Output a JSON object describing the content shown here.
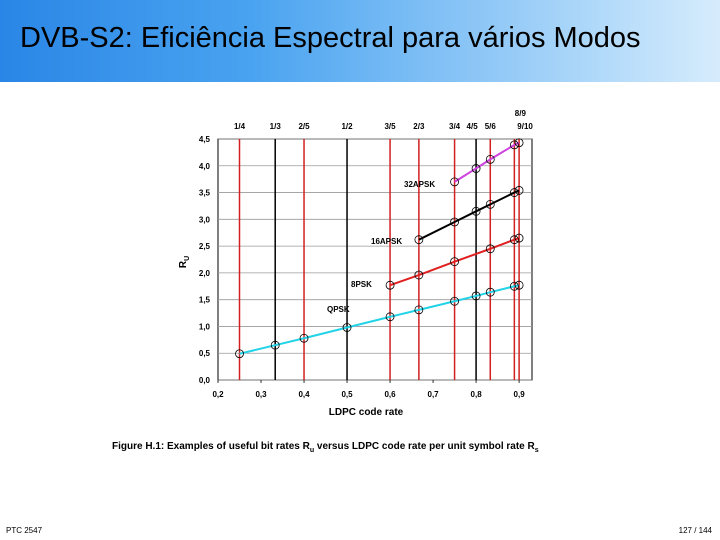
{
  "slide": {
    "title": "DVB-S2:  Eficiência Espectral para vários Modos",
    "footer_left": "PTC 2547",
    "footer_right": "127 / 144"
  },
  "chart_data": {
    "type": "line",
    "xlabel": "LDPC code rate",
    "ylabel": "R",
    "ylabel_sub": "U",
    "caption": "Figure H.1: Examples of useful bit rates R",
    "caption_sub": "u",
    "caption_tail": " versus LDPC code rate per unit symbol rate R",
    "caption_sub2": "s",
    "xlim": [
      0.2,
      0.93
    ],
    "ylim": [
      0.0,
      4.5
    ],
    "x_ticks": [
      "0,2",
      "0,3",
      "0,4",
      "0,5",
      "0,6",
      "0,7",
      "0,8",
      "0,9"
    ],
    "y_ticks": [
      "0,0",
      "0,5",
      "1,0",
      "1,5",
      "2,0",
      "2,5",
      "3,0",
      "3,5",
      "4,0",
      "4,5"
    ],
    "grid": true,
    "rate_lines": [
      {
        "label": "1/4",
        "value": 0.25,
        "color": "red"
      },
      {
        "label": "1/3",
        "value": 0.333,
        "color": "black"
      },
      {
        "label": "2/5",
        "value": 0.4,
        "color": "red"
      },
      {
        "label": "1/2",
        "value": 0.5,
        "color": "black"
      },
      {
        "label": "3/5",
        "value": 0.6,
        "color": "red"
      },
      {
        "label": "2/3",
        "value": 0.667,
        "color": "red"
      },
      {
        "label": "3/4",
        "value": 0.75,
        "color": "red"
      },
      {
        "label": "4/5",
        "value": 0.8,
        "color": "black"
      },
      {
        "label": "5/6",
        "value": 0.833,
        "color": "red"
      },
      {
        "label": "8/9",
        "value": 0.889,
        "color": "red"
      },
      {
        "label": "9/10",
        "value": 0.9,
        "color": "red"
      }
    ],
    "series": [
      {
        "name": "QPSK",
        "color": "#22d3e8",
        "x": [
          0.25,
          0.333,
          0.4,
          0.5,
          0.6,
          0.667,
          0.75,
          0.8,
          0.833,
          0.889,
          0.9
        ],
        "y": [
          0.49,
          0.65,
          0.78,
          0.98,
          1.18,
          1.31,
          1.47,
          1.57,
          1.64,
          1.75,
          1.77
        ]
      },
      {
        "name": "8PSK",
        "color": "#e02020",
        "x": [
          0.6,
          0.667,
          0.75,
          0.833,
          0.889,
          0.9
        ],
        "y": [
          1.77,
          1.96,
          2.21,
          2.45,
          2.62,
          2.65
        ]
      },
      {
        "name": "16APSK",
        "color": "#000000",
        "x": [
          0.667,
          0.75,
          0.8,
          0.833,
          0.889,
          0.9
        ],
        "y": [
          2.62,
          2.95,
          3.15,
          3.28,
          3.5,
          3.54
        ]
      },
      {
        "name": "32APSK",
        "color": "#d040e0",
        "x": [
          0.75,
          0.8,
          0.833,
          0.889,
          0.9
        ],
        "y": [
          3.7,
          3.95,
          4.12,
          4.39,
          4.43
        ]
      }
    ]
  }
}
